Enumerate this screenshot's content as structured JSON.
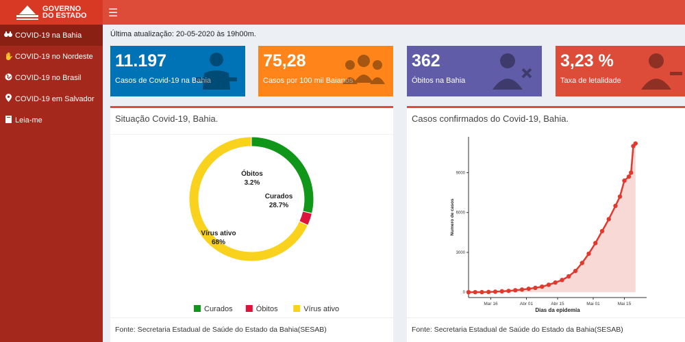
{
  "header": {
    "logo_line1": "GOVERNO",
    "logo_line2": "DO ESTADO",
    "menu_icon": "hamburger-icon"
  },
  "sidebar": {
    "items": [
      {
        "label": "COVID-19 na Bahia",
        "icon": "binoculars-icon"
      },
      {
        "label": "COVID-19 no Nordeste",
        "icon": "hand-icon"
      },
      {
        "label": "COVID-19 no Brasil",
        "icon": "globe-icon"
      },
      {
        "label": "COVID-19 em Salvador",
        "icon": "map-marker-icon"
      },
      {
        "label": "Leia-me",
        "icon": "book-icon"
      }
    ]
  },
  "updated": "Última atualização: 20-05-2020 às 19h00m.",
  "boxes": [
    {
      "value": "11.197",
      "label": "Casos de Covid-19 na Bahia",
      "color": "#0073b7",
      "icon": "doctor-icon"
    },
    {
      "value": "75,28",
      "label": "Casos por 100 mil Baianos",
      "color": "#ff851b",
      "icon": "users-icon"
    },
    {
      "value": "362",
      "label": "Óbitos na Bahia",
      "color": "#605ca8",
      "icon": "user-times-icon"
    },
    {
      "value": "3,23 %",
      "label": "Taxa de letalidade",
      "color": "#dd4b39",
      "icon": "user-minus-icon"
    }
  ],
  "panel_left": {
    "title": "Situação Covid-19, Bahia.",
    "source": "Fonte: Secretaria Estadual de Saúde do Estado da Bahia(SESAB)"
  },
  "panel_right": {
    "title": "Casos confirmados do Covid-19, Bahia.",
    "source": "Fonte: Secretaria Estadual de Saúde do Estado da Bahia(SESAB)"
  },
  "chart_data": [
    {
      "type": "pie",
      "donut": true,
      "slices": [
        {
          "name": "Curados",
          "value": 28.7,
          "label": "28.7%",
          "color": "#109618"
        },
        {
          "name": "Óbitos",
          "value": 3.2,
          "label": "3.2%",
          "color": "#dc143c"
        },
        {
          "name": "Vírus ativo",
          "value": 68,
          "label": "68%",
          "color": "#f8d21c"
        }
      ],
      "legend": "bottom"
    },
    {
      "type": "area",
      "xlabel": "Dias da epidemia",
      "ylabel": "Numero de casos",
      "x_ticks": [
        "Mar 16",
        "Abr 01",
        "Abr 15",
        "Mai 01",
        "Mai 15"
      ],
      "y_ticks": [
        "0",
        "3000",
        "6000",
        "9000"
      ],
      "x_range": [
        "2020-03-06",
        "2020-05-25"
      ],
      "ylim": [
        -400,
        11700
      ],
      "color": "#e03a2f",
      "series": [
        {
          "x": [
            "2020-03-06",
            "2020-03-09",
            "2020-03-12",
            "2020-03-15",
            "2020-03-18",
            "2020-03-21",
            "2020-03-24",
            "2020-03-27",
            "2020-03-30",
            "2020-04-02",
            "2020-04-05",
            "2020-04-08",
            "2020-04-11",
            "2020-04-14",
            "2020-04-17",
            "2020-04-20",
            "2020-04-23",
            "2020-04-26",
            "2020-04-29",
            "2020-05-02",
            "2020-05-05",
            "2020-05-08",
            "2020-05-11",
            "2020-05-13",
            "2020-05-15",
            "2020-05-17",
            "2020-05-18",
            "2020-05-19",
            "2020-05-20"
          ],
          "y": [
            2,
            3,
            8,
            20,
            40,
            70,
            100,
            150,
            200,
            260,
            330,
            420,
            560,
            730,
            920,
            1200,
            1600,
            2200,
            2900,
            3700,
            4600,
            5500,
            6500,
            7200,
            8400,
            8700,
            9000,
            11000,
            11197
          ]
        }
      ]
    }
  ]
}
